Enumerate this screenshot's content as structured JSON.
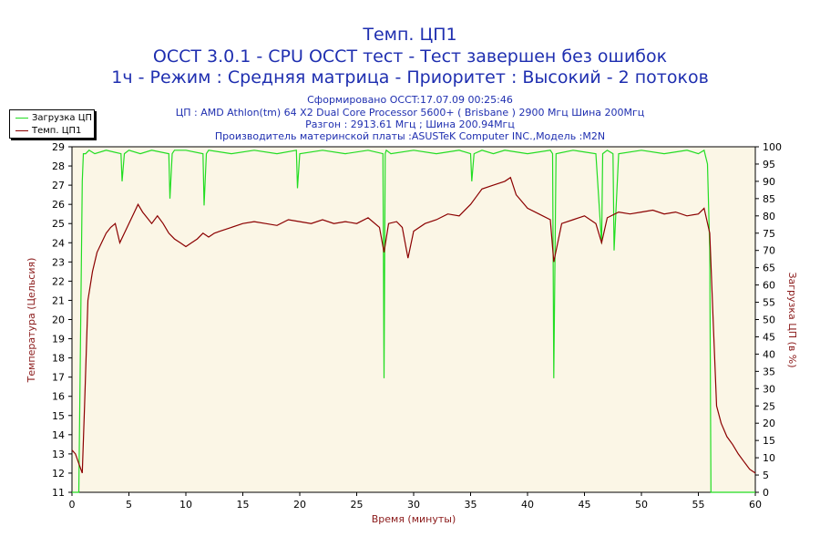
{
  "titles": {
    "line1": "Темп. ЦП1",
    "line2": "OCCT 3.0.1 - CPU OCCT тест - Тест завершен без ошибок",
    "line3": "1ч - Режим : Средняя матрица - Приоритет : Высокий - 2 потоков"
  },
  "subtitles": {
    "generated": "Сформировано OCCT:17.07.09 00:25:46",
    "cpu": "ЦП : AMD Athlon(tm) 64 X2 Dual Core Processor 5600+ ( Brisbane ) 2900 Мгц Шина 200Мгц",
    "overclock": "Разгон : 2913.61 Мгц ; Шина 200.94Мгц",
    "mobo": "Производитель материнской платы :ASUSTeK Computer INC.,Модель :M2N"
  },
  "legend": {
    "load_label": "Загрузка ЦП",
    "temp_label": "Темп. ЦП1"
  },
  "colors": {
    "load": "#22dd22",
    "temp": "#8b0000",
    "plot_bg": "#fbf6e6",
    "title": "#1f2fb0",
    "axis_label": "#8b1a1a"
  },
  "chart_data": {
    "type": "line",
    "xlabel": "Время (минуты)",
    "ylabel_left": "Температура (Цельсия)",
    "ylabel_right": "Загрузка ЦП (в %)",
    "xlim": [
      0,
      60
    ],
    "ylim_left": [
      11,
      29
    ],
    "ylim_right": [
      0,
      100
    ],
    "x_ticks": [
      0,
      5,
      10,
      15,
      20,
      25,
      30,
      35,
      40,
      45,
      50,
      55,
      60
    ],
    "y_left_ticks": [
      11,
      12,
      13,
      14,
      15,
      16,
      17,
      18,
      19,
      20,
      21,
      22,
      23,
      24,
      25,
      26,
      27,
      28,
      29
    ],
    "y_right_ticks": [
      0,
      5,
      10,
      15,
      20,
      25,
      30,
      35,
      40,
      45,
      50,
      55,
      60,
      65,
      70,
      75,
      80,
      85,
      90,
      95,
      100
    ],
    "grid": false,
    "legend_position": "top-left",
    "series": [
      {
        "name": "Загрузка ЦП",
        "axis": "right",
        "x": [
          0,
          0.6,
          0.9,
          1.0,
          1.2,
          1.5,
          2.0,
          3.0,
          4.3,
          4.4,
          4.6,
          5.0,
          6.0,
          7.0,
          8.5,
          8.6,
          8.8,
          9.0,
          10.0,
          11.5,
          11.6,
          11.8,
          12.0,
          14.0,
          16.0,
          18.0,
          19.7,
          19.8,
          20.0,
          22.0,
          24.0,
          26.0,
          27.3,
          27.4,
          27.5,
          27.6,
          28.0,
          30.0,
          32.0,
          34.0,
          35.0,
          35.1,
          35.3,
          36.0,
          37.0,
          38.0,
          40.0,
          42.0,
          42.2,
          42.3,
          42.5,
          44.0,
          46.0,
          46.5,
          46.6,
          47.0,
          47.5,
          47.6,
          48.0,
          50.0,
          52.0,
          54.0,
          55.0,
          55.5,
          55.8,
          56.0,
          56.1,
          56.3,
          58.0,
          60.0
        ],
        "values": [
          0,
          0,
          90,
          98,
          98,
          99,
          98,
          99,
          98,
          90,
          98,
          99,
          98,
          99,
          98,
          85,
          98,
          99,
          99,
          98,
          83,
          98,
          99,
          98,
          99,
          98,
          99,
          88,
          98,
          99,
          98,
          99,
          98,
          33,
          98,
          99,
          98,
          99,
          98,
          99,
          98,
          90,
          98,
          99,
          98,
          99,
          98,
          99,
          98,
          33,
          98,
          99,
          98,
          72,
          98,
          99,
          98,
          70,
          98,
          99,
          98,
          99,
          98,
          99,
          95,
          70,
          0,
          0,
          0,
          0
        ]
      },
      {
        "name": "Темп. ЦП1",
        "axis": "left",
        "x": [
          0,
          0.3,
          0.6,
          0.9,
          1.1,
          1.4,
          1.8,
          2.2,
          2.6,
          3.0,
          3.4,
          3.8,
          4.2,
          4.6,
          5.0,
          5.4,
          5.8,
          6.2,
          6.6,
          7.0,
          7.5,
          8.0,
          8.5,
          9.0,
          9.5,
          10.0,
          10.5,
          11.0,
          11.5,
          12.0,
          12.5,
          13.0,
          14.0,
          15.0,
          16.0,
          17.0,
          18.0,
          19.0,
          20.0,
          21.0,
          22.0,
          23.0,
          24.0,
          25.0,
          26.0,
          27.0,
          27.4,
          27.8,
          28.5,
          29.0,
          29.5,
          30.0,
          31.0,
          32.0,
          33.0,
          34.0,
          35.0,
          35.5,
          36.0,
          37.0,
          38.0,
          38.5,
          39.0,
          40.0,
          41.0,
          42.0,
          42.3,
          43.0,
          44.0,
          45.0,
          46.0,
          46.5,
          47.0,
          48.0,
          49.0,
          50.0,
          51.0,
          52.0,
          53.0,
          54.0,
          55.0,
          55.5,
          56.0,
          56.3,
          56.6,
          57.0,
          57.5,
          58.0,
          58.5,
          59.0,
          59.5,
          60.0
        ],
        "values": [
          13.2,
          13.0,
          12.5,
          12.0,
          15.5,
          21.0,
          22.5,
          23.5,
          24.0,
          24.5,
          24.8,
          25.0,
          24.0,
          24.5,
          25.0,
          25.5,
          26.0,
          25.6,
          25.3,
          25.0,
          25.4,
          25.0,
          24.5,
          24.2,
          24.0,
          23.8,
          24.0,
          24.2,
          24.5,
          24.3,
          24.5,
          24.6,
          24.8,
          25.0,
          25.1,
          25.0,
          24.9,
          25.2,
          25.1,
          25.0,
          25.2,
          25.0,
          25.1,
          25.0,
          25.3,
          24.8,
          23.5,
          25.0,
          25.1,
          24.8,
          23.2,
          24.6,
          25.0,
          25.2,
          25.5,
          25.4,
          26.0,
          26.4,
          26.8,
          27.0,
          27.2,
          27.4,
          26.5,
          25.8,
          25.5,
          25.2,
          23.0,
          25.0,
          25.2,
          25.4,
          25.0,
          24.0,
          25.3,
          25.6,
          25.5,
          25.6,
          25.7,
          25.5,
          25.6,
          25.4,
          25.5,
          25.8,
          24.5,
          20.0,
          15.5,
          14.6,
          13.9,
          13.5,
          13.0,
          12.6,
          12.2,
          12.0
        ]
      }
    ]
  }
}
